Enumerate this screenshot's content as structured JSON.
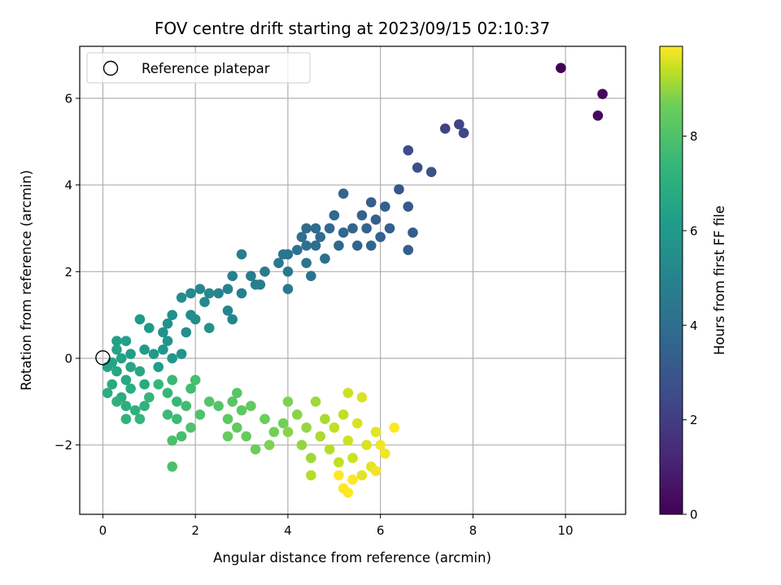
{
  "chart_data": {
    "type": "scatter",
    "title": "FOV centre drift starting at 2023/09/15 02:10:37",
    "xlabel": "Angular distance from reference (arcmin)",
    "ylabel": "Rotation from reference (arcmin)",
    "xlim": [
      -0.5,
      11.3
    ],
    "ylim": [
      -3.6,
      7.2
    ],
    "xticks": [
      "0",
      "2",
      "4",
      "6",
      "8",
      "10"
    ],
    "yticks": [
      "−2",
      "0",
      "2",
      "4",
      "6"
    ],
    "grid": true,
    "legend": {
      "position": "top-left",
      "label": "Reference platepar"
    },
    "reference_point": {
      "x": 0,
      "y": 0
    },
    "colorbar": {
      "label": "Hours from first FF file",
      "range": [
        0,
        9.9
      ],
      "ticks": [
        "0",
        "2",
        "4",
        "6",
        "8"
      ],
      "colormap": "viridis"
    },
    "points": [
      [
        9.9,
        6.7,
        0.0
      ],
      [
        10.8,
        6.1,
        0.2
      ],
      [
        10.7,
        5.6,
        0.3
      ],
      [
        7.4,
        5.3,
        2.2
      ],
      [
        7.7,
        5.4,
        2.3
      ],
      [
        7.8,
        5.2,
        2.4
      ],
      [
        6.6,
        4.8,
        2.6
      ],
      [
        6.8,
        4.4,
        2.7
      ],
      [
        7.1,
        4.3,
        2.8
      ],
      [
        6.4,
        3.9,
        3.0
      ],
      [
        6.6,
        3.5,
        3.1
      ],
      [
        6.7,
        2.9,
        3.2
      ],
      [
        6.6,
        2.5,
        3.3
      ],
      [
        5.8,
        3.6,
        3.3
      ],
      [
        6.1,
        3.5,
        3.4
      ],
      [
        5.9,
        3.2,
        3.4
      ],
      [
        5.6,
        3.3,
        3.5
      ],
      [
        5.7,
        3.0,
        3.5
      ],
      [
        6.2,
        3.0,
        3.4
      ],
      [
        6.0,
        2.8,
        3.5
      ],
      [
        5.8,
        2.6,
        3.6
      ],
      [
        5.5,
        2.6,
        3.6
      ],
      [
        5.4,
        3.0,
        3.6
      ],
      [
        5.2,
        3.8,
        3.6
      ],
      [
        5.0,
        3.3,
        3.7
      ],
      [
        5.2,
        2.9,
        3.7
      ],
      [
        4.9,
        3.0,
        3.8
      ],
      [
        5.1,
        2.6,
        3.8
      ],
      [
        4.6,
        3.0,
        3.9
      ],
      [
        4.4,
        3.0,
        3.9
      ],
      [
        4.7,
        2.8,
        4.0
      ],
      [
        4.8,
        2.3,
        4.0
      ],
      [
        4.6,
        2.6,
        4.0
      ],
      [
        4.4,
        2.6,
        4.1
      ],
      [
        4.3,
        2.8,
        4.1
      ],
      [
        4.2,
        2.5,
        4.2
      ],
      [
        4.0,
        2.4,
        4.2
      ],
      [
        4.4,
        2.2,
        4.3
      ],
      [
        4.5,
        1.9,
        4.3
      ],
      [
        4.0,
        2.0,
        4.4
      ],
      [
        3.9,
        2.4,
        4.4
      ],
      [
        3.8,
        2.2,
        4.5
      ],
      [
        4.0,
        1.6,
        4.5
      ],
      [
        3.5,
        2.0,
        4.6
      ],
      [
        3.4,
        1.7,
        4.6
      ],
      [
        3.2,
        1.9,
        4.7
      ],
      [
        3.0,
        2.4,
        4.7
      ],
      [
        3.3,
        1.7,
        4.8
      ],
      [
        3.0,
        1.5,
        4.9
      ],
      [
        2.8,
        1.9,
        4.9
      ],
      [
        2.7,
        1.6,
        5.0
      ],
      [
        2.5,
        1.5,
        5.0
      ],
      [
        2.7,
        1.1,
        5.1
      ],
      [
        2.8,
        0.9,
        5.1
      ],
      [
        2.3,
        1.5,
        5.2
      ],
      [
        2.1,
        1.6,
        5.2
      ],
      [
        2.2,
        1.3,
        5.3
      ],
      [
        1.9,
        1.5,
        5.3
      ],
      [
        1.7,
        1.4,
        5.4
      ],
      [
        1.9,
        1.0,
        5.4
      ],
      [
        2.0,
        0.9,
        5.5
      ],
      [
        1.8,
        0.6,
        5.5
      ],
      [
        2.3,
        0.7,
        5.6
      ],
      [
        1.5,
        1.0,
        5.6
      ],
      [
        1.4,
        0.8,
        5.7
      ],
      [
        1.3,
        0.6,
        5.7
      ],
      [
        1.4,
        0.4,
        5.8
      ],
      [
        1.7,
        0.1,
        5.8
      ],
      [
        1.5,
        0.0,
        5.9
      ],
      [
        1.3,
        0.2,
        5.9
      ],
      [
        1.0,
        0.7,
        6.0
      ],
      [
        0.8,
        0.9,
        6.0
      ],
      [
        1.1,
        0.1,
        6.1
      ],
      [
        0.9,
        0.2,
        6.1
      ],
      [
        1.2,
        -0.2,
        6.2
      ],
      [
        0.6,
        0.1,
        6.2
      ],
      [
        0.5,
        0.4,
        6.3
      ],
      [
        0.3,
        0.4,
        6.3
      ],
      [
        0.3,
        0.2,
        6.4
      ],
      [
        0.4,
        0.0,
        6.4
      ],
      [
        0.2,
        -0.1,
        6.5
      ],
      [
        0.1,
        -0.2,
        6.5
      ],
      [
        0.6,
        -0.2,
        6.6
      ],
      [
        0.3,
        -0.3,
        6.6
      ],
      [
        0.5,
        -0.5,
        6.7
      ],
      [
        0.8,
        -0.3,
        6.7
      ],
      [
        0.9,
        -0.6,
        6.8
      ],
      [
        0.2,
        -0.6,
        6.8
      ],
      [
        0.1,
        -0.8,
        6.9
      ],
      [
        0.4,
        -0.9,
        6.9
      ],
      [
        0.6,
        -0.7,
        7.0
      ],
      [
        0.5,
        -1.1,
        7.0
      ],
      [
        0.3,
        -1.0,
        7.1
      ],
      [
        0.7,
        -1.2,
        7.1
      ],
      [
        0.9,
        -1.1,
        7.2
      ],
      [
        0.5,
        -1.4,
        7.2
      ],
      [
        0.8,
        -1.4,
        7.3
      ],
      [
        1.0,
        -0.9,
        7.3
      ],
      [
        1.2,
        -0.6,
        7.4
      ],
      [
        1.4,
        -0.8,
        7.4
      ],
      [
        1.5,
        -0.5,
        7.5
      ],
      [
        1.6,
        -1.0,
        7.5
      ],
      [
        1.4,
        -1.3,
        7.6
      ],
      [
        1.6,
        -1.4,
        7.6
      ],
      [
        1.8,
        -1.1,
        7.7
      ],
      [
        1.9,
        -0.7,
        7.7
      ],
      [
        2.0,
        -0.5,
        7.8
      ],
      [
        1.7,
        -1.8,
        7.8
      ],
      [
        1.5,
        -1.9,
        7.9
      ],
      [
        1.5,
        -2.5,
        7.9
      ],
      [
        1.9,
        -1.6,
        8.0
      ],
      [
        2.1,
        -1.3,
        8.0
      ],
      [
        2.3,
        -1.0,
        8.1
      ],
      [
        2.5,
        -1.1,
        8.1
      ],
      [
        2.8,
        -1.0,
        8.2
      ],
      [
        2.9,
        -0.8,
        8.2
      ],
      [
        2.7,
        -1.4,
        8.3
      ],
      [
        3.0,
        -1.2,
        8.3
      ],
      [
        3.2,
        -1.1,
        8.4
      ],
      [
        2.9,
        -1.6,
        8.4
      ],
      [
        2.7,
        -1.8,
        8.5
      ],
      [
        3.1,
        -1.8,
        8.5
      ],
      [
        3.3,
        -2.1,
        8.6
      ],
      [
        3.5,
        -1.4,
        8.6
      ],
      [
        3.7,
        -1.7,
        8.7
      ],
      [
        3.9,
        -1.5,
        8.7
      ],
      [
        3.6,
        -2.0,
        8.8
      ],
      [
        4.0,
        -1.0,
        8.8
      ],
      [
        4.0,
        -1.7,
        8.9
      ],
      [
        4.2,
        -1.3,
        8.9
      ],
      [
        4.4,
        -1.6,
        9.0
      ],
      [
        4.3,
        -2.0,
        9.0
      ],
      [
        4.5,
        -2.3,
        9.1
      ],
      [
        4.6,
        -1.0,
        9.1
      ],
      [
        4.7,
        -1.8,
        9.2
      ],
      [
        4.8,
        -1.4,
        9.2
      ],
      [
        4.9,
        -2.1,
        9.3
      ],
      [
        4.5,
        -2.7,
        9.3
      ],
      [
        5.0,
        -1.6,
        9.4
      ],
      [
        5.1,
        -2.4,
        9.4
      ],
      [
        5.2,
        -1.3,
        9.4
      ],
      [
        5.3,
        -1.9,
        9.5
      ],
      [
        5.4,
        -2.3,
        9.5
      ],
      [
        5.3,
        -0.8,
        9.5
      ],
      [
        5.6,
        -0.9,
        9.6
      ],
      [
        5.5,
        -1.5,
        9.6
      ],
      [
        5.7,
        -2.0,
        9.6
      ],
      [
        5.8,
        -2.5,
        9.7
      ],
      [
        5.6,
        -2.7,
        9.7
      ],
      [
        5.9,
        -1.7,
        9.7
      ],
      [
        6.0,
        -2.0,
        9.8
      ],
      [
        6.1,
        -2.2,
        9.8
      ],
      [
        5.9,
        -2.6,
        9.8
      ],
      [
        5.2,
        -3.0,
        9.9
      ],
      [
        5.3,
        -3.1,
        9.9
      ],
      [
        6.3,
        -1.6,
        9.9
      ],
      [
        5.1,
        -2.7,
        9.9
      ],
      [
        5.4,
        -2.8,
        9.9
      ]
    ]
  }
}
